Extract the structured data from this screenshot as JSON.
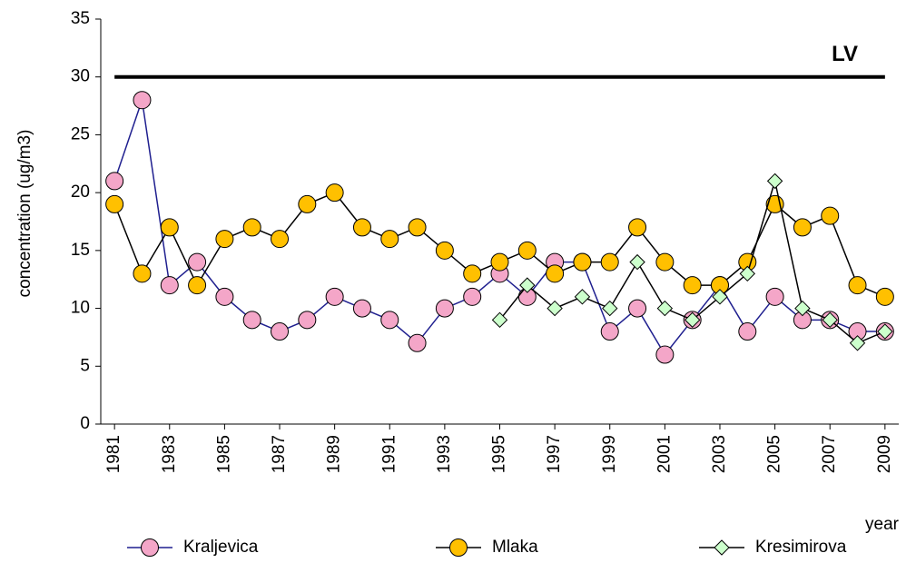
{
  "chart_data": {
    "type": "line",
    "y_label": "concentration (ug/m3)",
    "x_label": "year",
    "x": [
      1981,
      1982,
      1983,
      1984,
      1985,
      1986,
      1987,
      1988,
      1989,
      1990,
      1991,
      1992,
      1993,
      1994,
      1995,
      1996,
      1997,
      1998,
      1999,
      2000,
      2001,
      2002,
      2003,
      2004,
      2005,
      2006,
      2007,
      2008,
      2009
    ],
    "xlim": [
      1980.5,
      2009.5
    ],
    "xticks": [
      1981,
      1983,
      1985,
      1987,
      1989,
      1991,
      1993,
      1995,
      1997,
      1999,
      2001,
      2003,
      2005,
      2007,
      2009
    ],
    "ylim": [
      0,
      35
    ],
    "yticks": [
      0,
      5,
      10,
      15,
      20,
      25,
      30,
      35
    ],
    "reference_line": {
      "value": 30,
      "label": "LV",
      "color": "#000000"
    },
    "series": [
      {
        "name": "Kraljevica",
        "color": "#f4a6c8",
        "line_color": "#1f1f8f",
        "marker": "circle",
        "values": [
          21,
          28,
          12,
          14,
          11,
          9,
          8,
          9,
          11,
          10,
          9,
          7,
          10,
          11,
          13,
          11,
          14,
          14,
          8,
          10,
          6,
          9,
          12,
          8,
          11,
          9,
          9,
          8,
          8
        ]
      },
      {
        "name": "Mlaka",
        "color": "#ffc000",
        "line_color": "#000000",
        "marker": "circle",
        "values": [
          19,
          13,
          17,
          12,
          16,
          17,
          16,
          19,
          20,
          17,
          16,
          17,
          15,
          13,
          14,
          15,
          13,
          14,
          14,
          17,
          14,
          12,
          12,
          14,
          19,
          17,
          18,
          12,
          11
        ]
      },
      {
        "name": "Kresimirova",
        "color": "#ccffcc",
        "line_color": "#000000",
        "marker": "diamond",
        "values": [
          null,
          null,
          null,
          null,
          null,
          null,
          null,
          null,
          null,
          null,
          null,
          null,
          null,
          null,
          9,
          12,
          10,
          11,
          10,
          14,
          10,
          9,
          11,
          13,
          21,
          10,
          9,
          7,
          8
        ]
      }
    ]
  }
}
